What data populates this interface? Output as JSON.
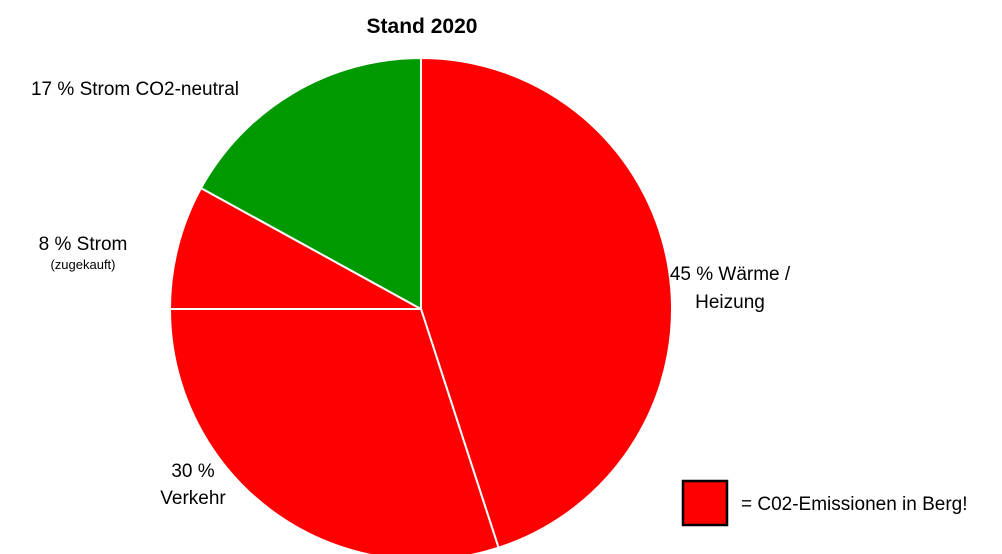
{
  "chart_data": {
    "type": "pie",
    "title": "Stand 2020",
    "start_angle_deg": 0,
    "direction": "clockwise",
    "slices": [
      {
        "value": 45,
        "label_lines": [
          "45 % Wärme /",
          "Heizung"
        ],
        "sublabel": "",
        "color": "#ff0000"
      },
      {
        "value": 30,
        "label_lines": [
          "30 %",
          "Verkehr"
        ],
        "sublabel": "",
        "color": "#ff0000"
      },
      {
        "value": 8,
        "label_lines": [
          "8 % Strom"
        ],
        "sublabel": "(zugekauft)",
        "color": "#ff0000"
      },
      {
        "value": 17,
        "label_lines": [
          "17 % Strom CO2-neutral"
        ],
        "sublabel": "",
        "color": "#009900"
      }
    ],
    "legend": {
      "placement": "bottom-right",
      "swatch_color": "#ff0000",
      "swatch_border": "#000000",
      "text": "= C02-Emissionen in Berg!"
    },
    "slice_border_color": "#ffffff"
  }
}
